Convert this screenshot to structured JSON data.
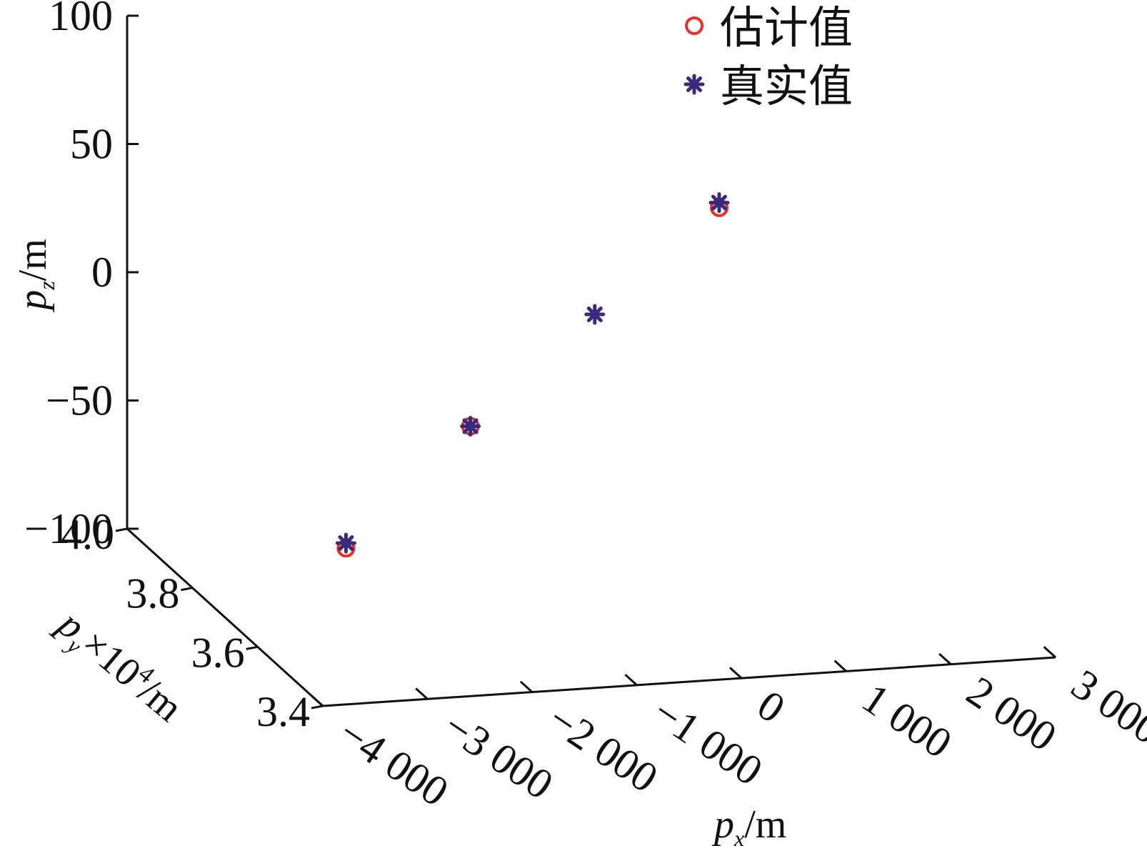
{
  "chart_data": {
    "type": "scatter",
    "projection": "3d",
    "title": "",
    "axes": {
      "x": {
        "label_var": "p",
        "label_sub": "x",
        "label_unit": "/m",
        "ticks": [
          -4000,
          -3000,
          -2000,
          -1000,
          0,
          1000,
          2000,
          3000
        ],
        "tick_labels": [
          "−4 000",
          "−3 000",
          "−2 000",
          "−1 000",
          "0",
          "1 000",
          "2 000",
          "3 000"
        ],
        "range": [
          -4000,
          3000
        ]
      },
      "y": {
        "label_var": "p",
        "label_sub": "y",
        "label_mid": "×10",
        "label_exp": "4",
        "label_unit": "/m",
        "ticks": [
          3.4,
          3.6,
          3.8,
          4.0
        ],
        "tick_labels": [
          "3.4",
          "3.6",
          "3.8",
          "4.0"
        ],
        "range": [
          3.4,
          4.0
        ]
      },
      "z": {
        "label_var": "p",
        "label_sub": "z",
        "label_unit": "/m",
        "ticks": [
          -100,
          -50,
          0,
          50,
          100
        ],
        "tick_labels": [
          "−100",
          "−50",
          "0",
          "50",
          "100"
        ],
        "range": [
          -100,
          100
        ]
      }
    },
    "legend": {
      "position": "top-right"
    },
    "grid": false,
    "series": [
      {
        "name": "估计值",
        "marker": "circle",
        "color": "#e8302a",
        "points": [
          {
            "x": -3000,
            "y": 3.65,
            "z": -70
          },
          {
            "x": -1500,
            "y": 3.75,
            "z": -38
          },
          {
            "x": 1500,
            "y": 3.95,
            "z": 16
          }
        ]
      },
      {
        "name": "真实值",
        "marker": "asterisk",
        "color": "#3b2a7a",
        "points": [
          {
            "x": -3000,
            "y": 3.65,
            "z": -68
          },
          {
            "x": -1500,
            "y": 3.75,
            "z": -38
          },
          {
            "x": 0,
            "y": 3.85,
            "z": -10
          },
          {
            "x": 1500,
            "y": 3.95,
            "z": 18
          }
        ]
      }
    ]
  }
}
